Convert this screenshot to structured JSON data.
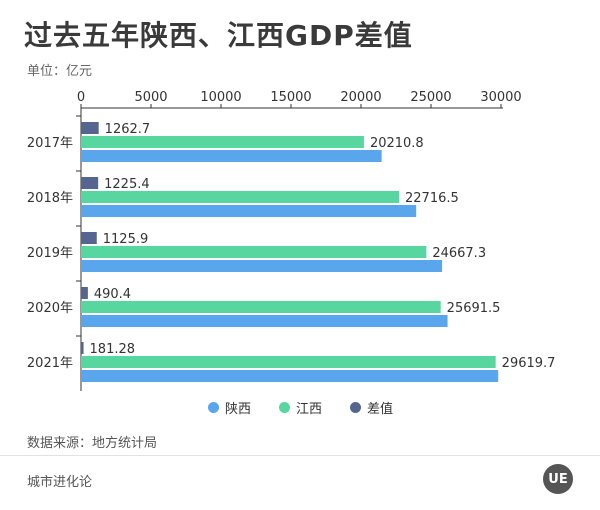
{
  "title": "过去五年陕西、江西GDP差值",
  "unit_label": "单位：亿元",
  "source": "数据来源：地方统计局",
  "footer": "城市进化论",
  "logo_text": "UE",
  "colors": {
    "shaanxi": "#5aa6ec",
    "jiangxi": "#58d6a0",
    "diff": "#54668f"
  },
  "chart_data": {
    "type": "bar",
    "orientation": "horizontal",
    "categories": [
      "2017年",
      "2018年",
      "2019年",
      "2020年",
      "2021年"
    ],
    "x_ticks": [
      0,
      5000,
      10000,
      15000,
      20000,
      25000,
      30000
    ],
    "xlim": [
      0,
      30000
    ],
    "legend_position": "bottom",
    "series": [
      {
        "name": "差值",
        "values": [
          1262.7,
          1225.4,
          1125.9,
          490.4,
          181.28
        ],
        "labels": [
          "1262.7",
          "1225.4",
          "1125.9",
          "490.4",
          "181.28"
        ]
      },
      {
        "name": "江西",
        "values": [
          20210.8,
          22716.5,
          24667.3,
          25691.5,
          29619.7
        ],
        "labels": [
          "20210.8",
          "22716.5",
          "24667.3",
          "25691.5",
          "29619.7"
        ]
      },
      {
        "name": "陕西",
        "values": [
          21473.5,
          23941.9,
          25793.2,
          26181.9,
          29801
        ]
      }
    ]
  }
}
